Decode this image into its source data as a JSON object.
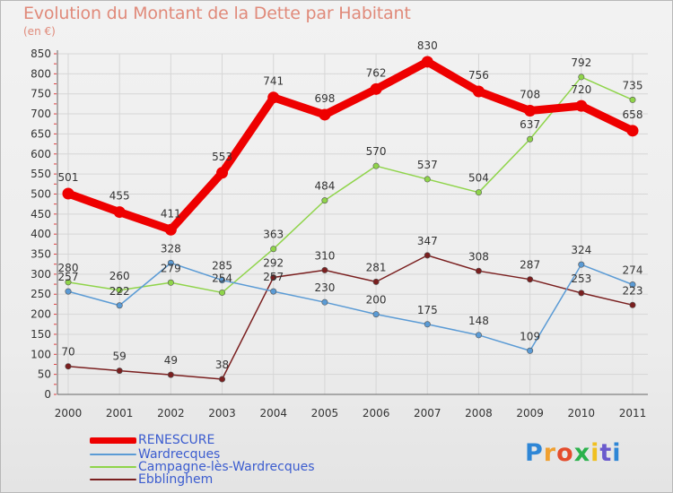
{
  "title": "Evolution du Montant de la Dette par Habitant",
  "subtitle": "(en €)",
  "logo_text": "Proxiti",
  "chart_data": {
    "type": "line",
    "title": "Evolution du Montant de la Dette par Habitant",
    "subtitle": "(en €)",
    "x": [
      "2000",
      "2001",
      "2002",
      "2003",
      "2004",
      "2005",
      "2006",
      "2007",
      "2008",
      "2009",
      "2010",
      "2011"
    ],
    "ylim": [
      0,
      850
    ],
    "yticks": [
      0,
      50,
      100,
      150,
      200,
      250,
      300,
      350,
      400,
      450,
      500,
      550,
      600,
      650,
      700,
      750,
      800,
      850
    ],
    "grid": true,
    "legend_position": "bottom-left",
    "series": [
      {
        "name": "RENESCURE",
        "color": "#ee0000",
        "values": [
          501,
          455,
          411,
          553,
          741,
          698,
          762,
          830,
          756,
          708,
          720,
          658
        ]
      },
      {
        "name": "Wardrecques",
        "color": "#5b9bd5",
        "values": [
          257,
          222,
          328,
          285,
          257,
          230,
          200,
          175,
          148,
          109,
          324,
          274
        ]
      },
      {
        "name": "Campagne-lès-Wardrecques",
        "color": "#8fd44a",
        "values": [
          280,
          260,
          279,
          254,
          363,
          484,
          570,
          537,
          504,
          637,
          792,
          735
        ]
      },
      {
        "name": "Ebblinghem",
        "color": "#7a1f1f",
        "values": [
          70,
          59,
          49,
          38,
          292,
          310,
          281,
          347,
          308,
          287,
          253,
          223
        ]
      }
    ]
  }
}
